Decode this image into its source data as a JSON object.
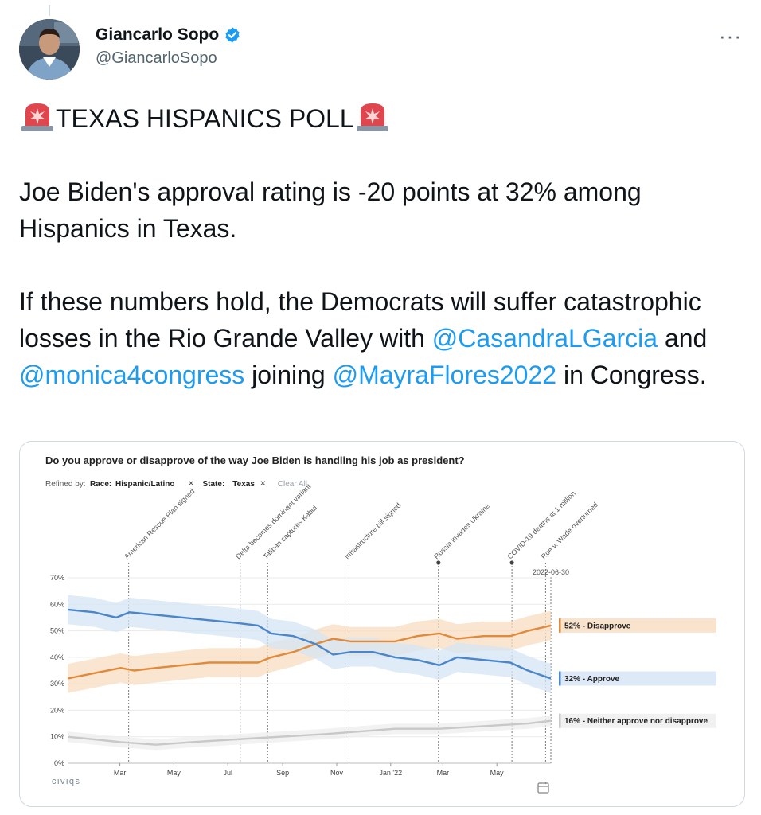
{
  "tweet": {
    "author_name": "Giancarlo Sopo",
    "handle": "@GiancarloSopo",
    "more_label": "···",
    "headline": "TEXAS HISPANICS POLL",
    "para1": "Joe Biden's approval rating is -20 points at 32% among Hispanics in Texas.",
    "para2_a": "If these numbers hold, the Democrats will suffer catastrophic losses in the Rio Grande Valley with ",
    "mention1": "@CasandraLGarcia",
    "para2_b": " and ",
    "mention2": "@monica4congress",
    "para2_c": " joining ",
    "mention3": "@MayraFlores2022",
    "para2_d": " in Congress.",
    "accent_color": "#1d9bf0"
  },
  "chart_data": {
    "type": "line",
    "title": "Do you approve or disapprove of the way Joe Biden is handling his job as president?",
    "filters": {
      "label": "Refined by:",
      "items": [
        {
          "key": "Race:",
          "value": "Hispanic/Latino",
          "remove_icon": "×"
        },
        {
          "key": "State:",
          "value": "Texas",
          "remove_icon": "×"
        }
      ],
      "clear_label": "Clear All"
    },
    "y_ticks": [
      "0%",
      "10%",
      "20%",
      "30%",
      "40%",
      "50%",
      "60%",
      "70%"
    ],
    "ylim": [
      0,
      70
    ],
    "x_ticks": [
      {
        "label": "Mar",
        "day": 59
      },
      {
        "label": "May",
        "day": 120
      },
      {
        "label": "Jul",
        "day": 181
      },
      {
        "label": "Sep",
        "day": 243
      },
      {
        "label": "Nov",
        "day": 304
      },
      {
        "label": "Jan '22",
        "day": 365
      },
      {
        "label": "Mar",
        "day": 424
      },
      {
        "label": "May",
        "day": 485
      }
    ],
    "x_domain_days": [
      0,
      546
    ],
    "annotations": [
      {
        "label": "American Rescue Plan signed",
        "day": 69,
        "dot": false
      },
      {
        "label": "Delta becomes dominant variant",
        "day": 195,
        "dot": false
      },
      {
        "label": "Taliban captures Kabul",
        "day": 226,
        "dot": false
      },
      {
        "label": "Infrastructure bill signed",
        "day": 318,
        "dot": false
      },
      {
        "label": "Russia invades Ukraine",
        "day": 419,
        "dot": true
      },
      {
        "label": "COVID-19 deaths at 1 million",
        "day": 502,
        "dot": true
      },
      {
        "label": "Roe v. Wade overturned",
        "day": 540,
        "dot": false
      }
    ],
    "end_date_label": "2022-06-30",
    "series": [
      {
        "name": "Disapprove",
        "end_label": "52% - Disapprove",
        "color": "#e08a3c",
        "band_color": "#f8dcc0",
        "points": [
          [
            0,
            32
          ],
          [
            30,
            34
          ],
          [
            60,
            36
          ],
          [
            75,
            35
          ],
          [
            100,
            36
          ],
          [
            130,
            37
          ],
          [
            160,
            38
          ],
          [
            190,
            38
          ],
          [
            215,
            38
          ],
          [
            230,
            40
          ],
          [
            255,
            42
          ],
          [
            280,
            45
          ],
          [
            300,
            47
          ],
          [
            320,
            46
          ],
          [
            345,
            46
          ],
          [
            370,
            46
          ],
          [
            395,
            48
          ],
          [
            420,
            49
          ],
          [
            440,
            47
          ],
          [
            470,
            48
          ],
          [
            500,
            48
          ],
          [
            520,
            50
          ],
          [
            546,
            52
          ]
        ]
      },
      {
        "name": "Approve",
        "end_label": "32% - Approve",
        "color": "#4a86c8",
        "band_color": "#d4e4f4",
        "points": [
          [
            0,
            58
          ],
          [
            30,
            57
          ],
          [
            55,
            55
          ],
          [
            70,
            57
          ],
          [
            100,
            56
          ],
          [
            130,
            55
          ],
          [
            160,
            54
          ],
          [
            190,
            53
          ],
          [
            215,
            52
          ],
          [
            230,
            49
          ],
          [
            255,
            48
          ],
          [
            280,
            45
          ],
          [
            300,
            41
          ],
          [
            320,
            42
          ],
          [
            345,
            42
          ],
          [
            370,
            40
          ],
          [
            395,
            39
          ],
          [
            420,
            37
          ],
          [
            440,
            40
          ],
          [
            470,
            39
          ],
          [
            500,
            38
          ],
          [
            520,
            35
          ],
          [
            546,
            32
          ]
        ]
      },
      {
        "name": "Neither approve nor disapprove",
        "end_label": "16% - Neither approve nor disapprove",
        "color": "#c8c8c8",
        "band_color": "#eeeeee",
        "points": [
          [
            0,
            10
          ],
          [
            30,
            9
          ],
          [
            60,
            8
          ],
          [
            100,
            7
          ],
          [
            140,
            8
          ],
          [
            190,
            9
          ],
          [
            240,
            10
          ],
          [
            290,
            11
          ],
          [
            330,
            12
          ],
          [
            370,
            13
          ],
          [
            420,
            13
          ],
          [
            470,
            14
          ],
          [
            520,
            15
          ],
          [
            546,
            16
          ]
        ]
      }
    ],
    "brand": "civiqs",
    "calendar_icon": "calendar-icon"
  }
}
